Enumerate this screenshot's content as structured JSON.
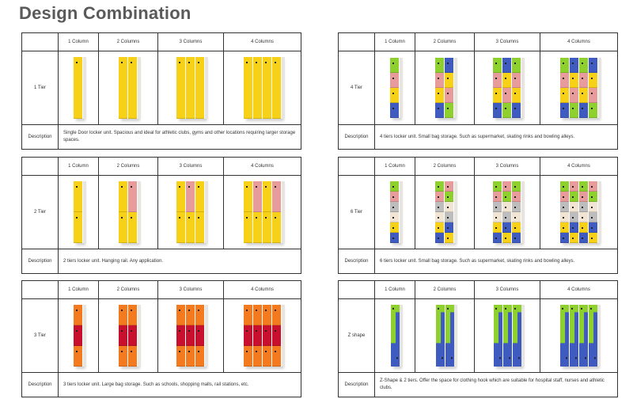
{
  "title": "Design Combination",
  "columns": [
    "1 Column",
    "2 Columns",
    "3 Columns",
    "4 Columns"
  ],
  "description_label": "Description",
  "colors": {
    "yellow": "#f7d117",
    "pink": "#e89b9b",
    "orange": "#f47a1f",
    "red": "#c8102e",
    "green": "#8ed12e",
    "blue": "#3f5bbf",
    "beige": "#f1e4d2",
    "gray": "#bdbdbd"
  },
  "tables": [
    {
      "tier": "1 Tier",
      "description": "Single Door locker unit. Spacious and ideal for athletic clubs, gyms and other locations requiring larger storage spaces.",
      "type": "tier",
      "pattern": [
        "yellow"
      ]
    },
    {
      "tier": "2 Tier",
      "description": "2 tiers locker unit. Hanging rail. Any application.",
      "type": "tier",
      "pattern": [
        "yellow",
        "yellow"
      ],
      "alt_pattern": [
        "pink",
        "yellow"
      ]
    },
    {
      "tier": "3 Tier",
      "description": "3 tiers locker unit. Large bag storage. Such as schools, shopping malls, rail stations, etc.",
      "type": "tier",
      "pattern": [
        "orange",
        "red",
        "orange"
      ]
    },
    {
      "tier": "4 Tier",
      "description": "4 tiers locker unit. Small bag storage. Such as supermarket, skating rinks and bowling alleys.",
      "type": "tier",
      "pattern": [
        "green",
        "pink",
        "yellow",
        "blue"
      ],
      "alt_pattern": [
        "blue",
        "yellow",
        "pink",
        "green"
      ]
    },
    {
      "tier": "6 Tier",
      "description": "6 tiers locker unit. Small bag storage. Such as supermarket, skating rinks and bowling alleys.",
      "type": "tier",
      "pattern": [
        "green",
        "pink",
        "gray",
        "beige",
        "yellow",
        "blue"
      ],
      "alt_pattern": [
        "pink",
        "green",
        "beige",
        "gray",
        "blue",
        "yellow"
      ]
    },
    {
      "tier": "Z shape",
      "description": "Z-Shape & 2 tiers. Offer the space for clothing hook which are suitable for hospital staff, nurses and athletic clubs.",
      "type": "z"
    }
  ]
}
